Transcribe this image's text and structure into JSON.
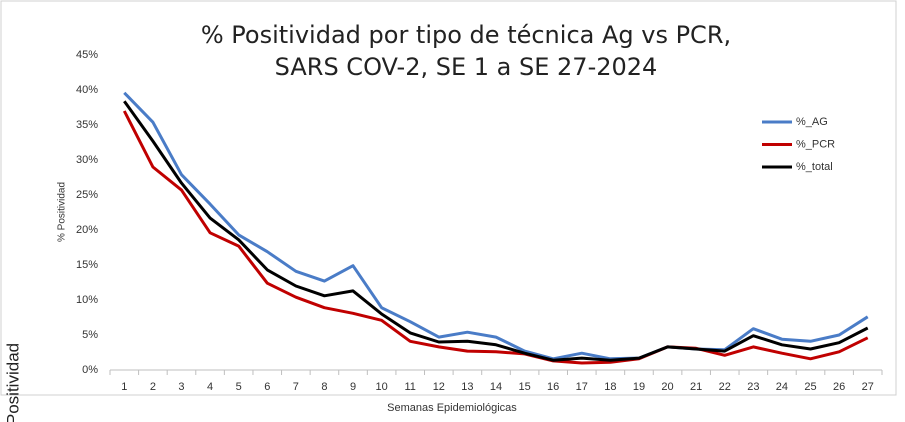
{
  "chart_data": {
    "type": "line",
    "title": [
      "% Positividad por tipo de técnica Ag vs PCR,",
      "SARS COV-2, SE 1 a SE 27-2024"
    ],
    "y_label": "% Positividad",
    "x_label": "Semanas Epidemiológicas",
    "side_label": "Positividad",
    "categories": [
      1,
      2,
      3,
      4,
      5,
      6,
      7,
      8,
      9,
      10,
      11,
      12,
      13,
      14,
      15,
      16,
      17,
      18,
      19,
      20,
      21,
      22,
      23,
      24,
      25,
      26,
      27
    ],
    "series": [
      {
        "name": "%_AG",
        "color": "#4a7cc7",
        "values": [
          39.6,
          35.4,
          27.9,
          23.7,
          19.3,
          16.9,
          14.1,
          12.7,
          14.9,
          8.9,
          6.9,
          4.7,
          5.4,
          4.7,
          2.7,
          1.6,
          2.4,
          1.6,
          1.7,
          3.3,
          3.0,
          2.9,
          5.9,
          4.4,
          4.1,
          5.0,
          7.6
        ]
      },
      {
        "name": "%_PCR",
        "color": "#c00000",
        "values": [
          37.0,
          29.0,
          25.7,
          19.6,
          17.7,
          12.4,
          10.4,
          8.9,
          8.1,
          7.1,
          4.1,
          3.3,
          2.7,
          2.6,
          2.3,
          1.3,
          1.0,
          1.1,
          1.6,
          3.3,
          3.1,
          2.1,
          3.3,
          2.4,
          1.6,
          2.6,
          4.6
        ]
      },
      {
        "name": "%_total",
        "color": "#000000",
        "values": [
          38.4,
          32.7,
          26.7,
          21.7,
          18.6,
          14.3,
          12.0,
          10.6,
          11.3,
          8.0,
          5.3,
          4.0,
          4.1,
          3.6,
          2.4,
          1.4,
          1.7,
          1.4,
          1.7,
          3.3,
          3.0,
          2.7,
          4.9,
          3.6,
          3.0,
          3.9,
          6.0
        ]
      }
    ],
    "ylim": [
      0,
      45
    ],
    "yticks": [
      {
        "value": 0,
        "label": "0%"
      },
      {
        "value": 5,
        "label": "5%"
      },
      {
        "value": 10,
        "label": "10%"
      },
      {
        "value": 15,
        "label": "15%"
      },
      {
        "value": 20,
        "label": "20%"
      },
      {
        "value": 25,
        "label": "25%"
      },
      {
        "value": 30,
        "label": "30%"
      },
      {
        "value": 35,
        "label": "35%"
      },
      {
        "value": 40,
        "label": "40%"
      },
      {
        "value": 45,
        "label": "45%"
      }
    ],
    "grid": false,
    "legend": "right"
  }
}
